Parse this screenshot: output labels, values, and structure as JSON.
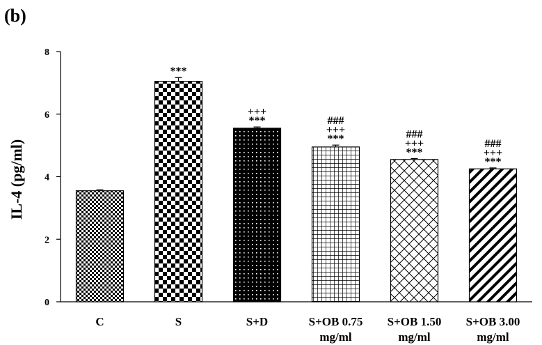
{
  "panel_label": "(b)",
  "chart_data": {
    "type": "bar",
    "title": "",
    "xlabel": "",
    "ylabel": "IL-4 (pg/ml)",
    "ylim": [
      0,
      8
    ],
    "yticks": [
      0,
      2,
      4,
      6,
      8
    ],
    "grid": false,
    "categories": [
      "C",
      "S",
      "S+D",
      "S+OB 0.75 mg/ml",
      "S+OB 1.50 mg/ml",
      "S+OB 3.00 mg/ml"
    ],
    "category_lines": [
      [
        "C"
      ],
      [
        "S"
      ],
      [
        "S+D"
      ],
      [
        "S+OB 0.75",
        "mg/ml"
      ],
      [
        "S+OB 1.50",
        "mg/ml"
      ],
      [
        "S+OB 3.00",
        "mg/ml"
      ]
    ],
    "values": [
      3.55,
      7.05,
      5.55,
      4.95,
      4.55,
      4.25
    ],
    "errors": [
      0.03,
      0.12,
      0.04,
      0.06,
      0.03,
      0.03
    ],
    "patterns": [
      "fine-checker",
      "large-checker",
      "dots",
      "grid",
      "diagonal-cross",
      "diagonal-stripes"
    ],
    "annotations": [
      [],
      [
        "***"
      ],
      [
        "+++",
        "***"
      ],
      [
        "###",
        "+++",
        "***"
      ],
      [
        "###",
        "+++",
        "***"
      ],
      [
        "###",
        "+++",
        "***"
      ]
    ]
  }
}
